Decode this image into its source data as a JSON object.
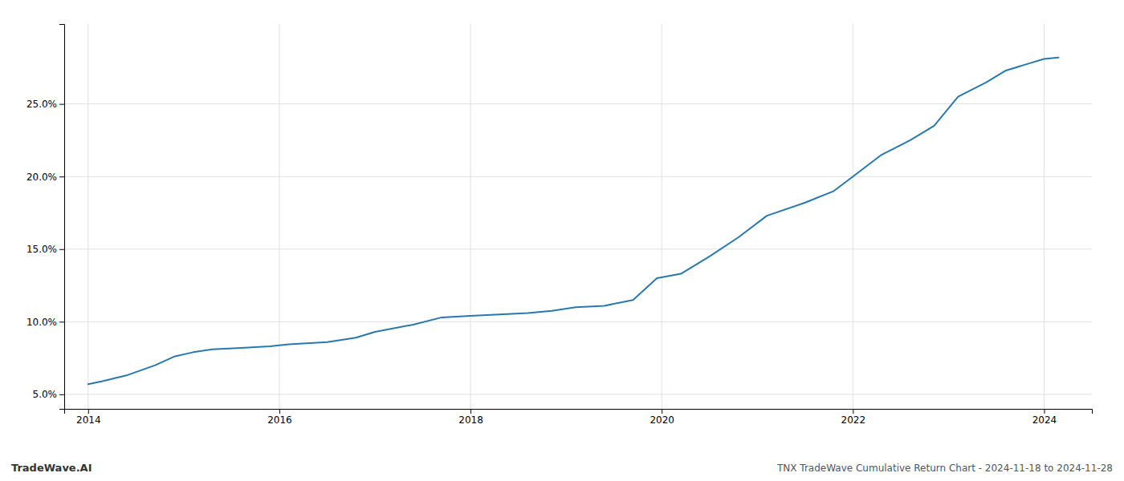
{
  "chart_data": {
    "type": "line",
    "title": "TNX TradeWave Cumulative Return Chart - 2024-11-18 to 2024-11-28",
    "annotations": [
      "TradeWave.AI"
    ],
    "color": "#2878b0",
    "grid": true,
    "x": [
      2014.0,
      2014.15,
      2014.4,
      2014.7,
      2014.9,
      2015.1,
      2015.3,
      2015.6,
      2015.9,
      2016.1,
      2016.5,
      2016.8,
      2017.0,
      2017.4,
      2017.7,
      2018.0,
      2018.3,
      2018.6,
      2018.85,
      2019.1,
      2019.4,
      2019.7,
      2019.95,
      2020.2,
      2020.5,
      2020.8,
      2021.1,
      2021.5,
      2021.8,
      2022.0,
      2022.3,
      2022.6,
      2022.85,
      2023.1,
      2023.4,
      2023.6,
      2023.85,
      2024.0,
      2024.15
    ],
    "values": [
      5.7,
      5.9,
      6.3,
      7.0,
      7.6,
      7.9,
      8.1,
      8.2,
      8.3,
      8.45,
      8.6,
      8.9,
      9.3,
      9.8,
      10.3,
      10.4,
      10.5,
      10.6,
      10.75,
      11.0,
      11.1,
      11.5,
      13.0,
      13.3,
      14.5,
      15.8,
      17.3,
      18.2,
      19.0,
      20.0,
      21.5,
      22.5,
      23.5,
      25.5,
      26.5,
      27.3,
      27.8,
      28.1,
      28.2
    ],
    "xlim": [
      2013.75,
      2024.5
    ],
    "xticks": [
      2014,
      2016,
      2018,
      2020,
      2022,
      2024
    ],
    "ylim": [
      4.0,
      30.5
    ],
    "yticks": [
      {
        "value": 5.0,
        "label": "5.0%"
      },
      {
        "value": 10.0,
        "label": "10.0%"
      },
      {
        "value": 15.0,
        "label": "15.0%"
      },
      {
        "value": 20.0,
        "label": "20.0%"
      },
      {
        "value": 25.0,
        "label": "25.0%"
      }
    ]
  }
}
